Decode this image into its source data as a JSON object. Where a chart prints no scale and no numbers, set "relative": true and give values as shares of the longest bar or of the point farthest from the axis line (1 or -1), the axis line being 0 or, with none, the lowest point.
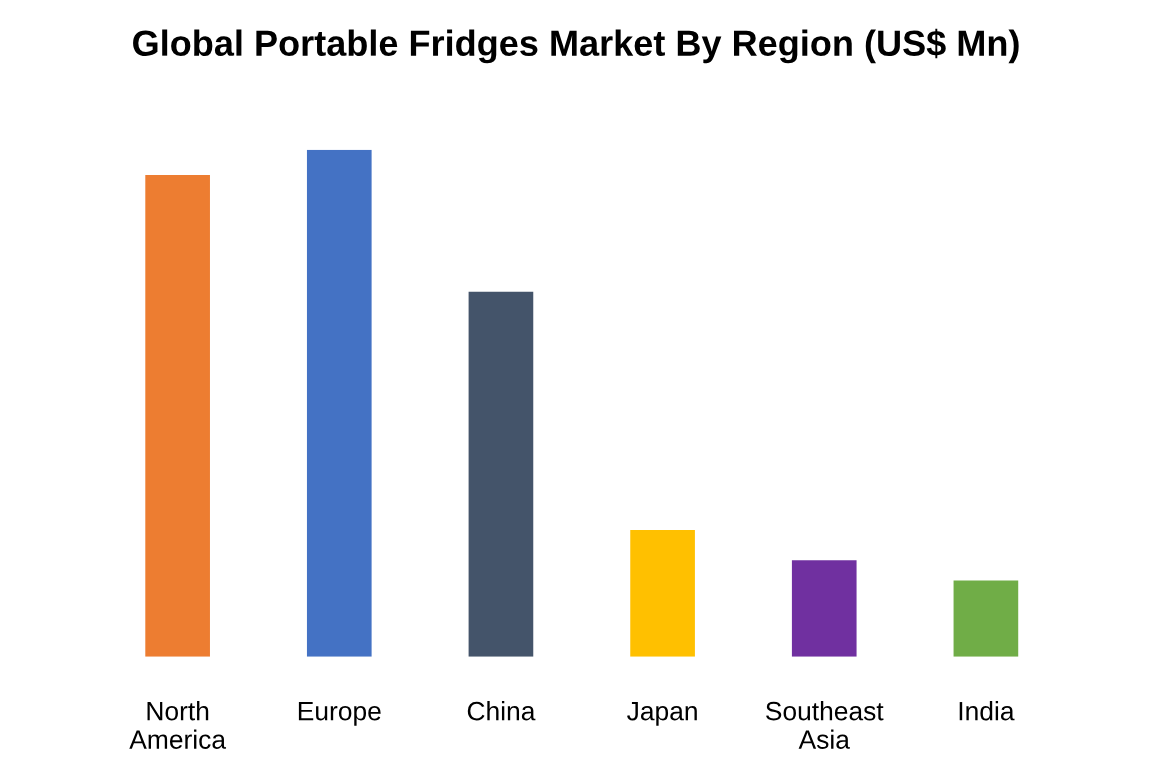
{
  "chart_data": {
    "type": "bar",
    "title": "Global Portable Fridges Market By Region (US$ Mn)",
    "relative": true,
    "categories": [
      "North America",
      "Europe",
      "China",
      "Japan",
      "Southeast Asia",
      "India"
    ],
    "values": [
      0.95,
      1,
      0.72,
      0.25,
      0.19,
      0.15
    ],
    "colors": [
      "#ed7d31",
      "#4472c4",
      "#44546a",
      "#ffc000",
      "#7030a0",
      "#70ad47"
    ],
    "grid": false,
    "legend": false
  }
}
